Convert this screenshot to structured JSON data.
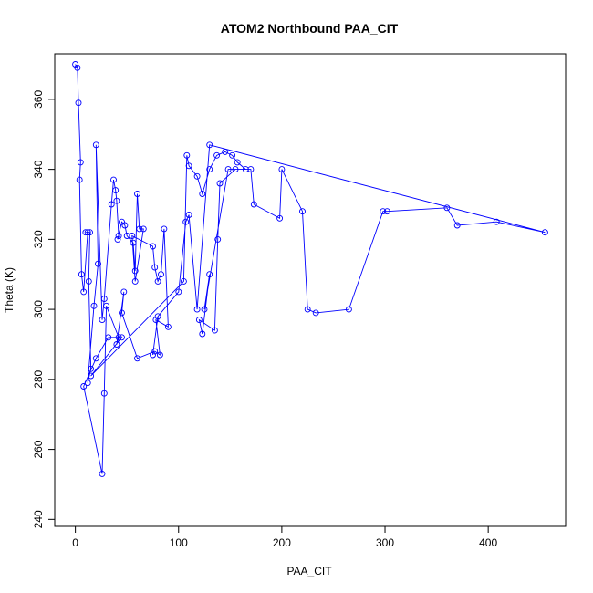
{
  "chart_data": {
    "type": "line",
    "title": "ATOM2 Northbound PAA_CIT",
    "xlabel": "PAA_CIT",
    "ylabel": "Theta (K)",
    "xlim": [
      -20,
      475
    ],
    "ylim": [
      238,
      373
    ],
    "xticks": [
      0,
      100,
      200,
      300,
      400
    ],
    "yticks": [
      240,
      260,
      280,
      300,
      320,
      340,
      360
    ],
    "grid": false,
    "series": [
      {
        "color": "#0000ff",
        "points": [
          [
            0,
            370
          ],
          [
            2,
            369
          ],
          [
            3,
            359
          ],
          [
            5,
            342
          ],
          [
            4,
            337
          ],
          [
            6,
            310
          ],
          [
            8,
            305
          ],
          [
            12,
            322
          ],
          [
            10,
            322
          ],
          [
            14,
            322
          ],
          [
            13,
            308
          ],
          [
            15,
            283
          ],
          [
            12,
            279
          ],
          [
            18,
            301
          ],
          [
            22,
            313
          ],
          [
            20,
            347
          ],
          [
            26,
            297
          ],
          [
            28,
            303
          ],
          [
            35,
            330
          ],
          [
            37,
            337
          ],
          [
            39,
            334
          ],
          [
            40,
            331
          ],
          [
            42,
            321
          ],
          [
            41,
            320
          ],
          [
            45,
            325
          ],
          [
            48,
            324
          ],
          [
            50,
            321
          ],
          [
            56,
            319
          ],
          [
            58,
            311
          ],
          [
            60,
            333
          ],
          [
            62,
            323
          ],
          [
            66,
            323
          ],
          [
            58,
            308
          ],
          [
            55,
            321
          ],
          [
            75,
            318
          ],
          [
            77,
            312
          ],
          [
            80,
            308
          ],
          [
            83,
            310
          ],
          [
            86,
            323
          ],
          [
            90,
            295
          ],
          [
            78,
            297
          ],
          [
            82,
            287
          ],
          [
            77,
            288
          ],
          [
            60,
            286
          ],
          [
            45,
            299
          ],
          [
            47,
            305
          ],
          [
            40,
            290
          ],
          [
            42,
            292
          ],
          [
            30,
            301
          ],
          [
            28,
            276
          ],
          [
            26,
            253
          ],
          [
            8,
            278
          ],
          [
            20,
            286
          ],
          [
            32,
            292
          ],
          [
            45,
            292
          ],
          [
            15,
            281
          ],
          [
            105,
            308
          ],
          [
            108,
            344
          ],
          [
            110,
            341
          ],
          [
            118,
            338
          ],
          [
            123,
            333
          ],
          [
            130,
            340
          ],
          [
            137,
            344
          ],
          [
            145,
            345
          ],
          [
            152,
            344
          ],
          [
            157,
            342
          ],
          [
            165,
            340
          ],
          [
            155,
            340
          ],
          [
            140,
            336
          ],
          [
            138,
            320
          ],
          [
            135,
            294
          ],
          [
            120,
            297
          ],
          [
            123,
            293
          ],
          [
            130,
            310
          ],
          [
            125,
            300
          ],
          [
            148,
            340
          ],
          [
            170,
            340
          ],
          [
            173,
            330
          ],
          [
            198,
            326
          ],
          [
            200,
            340
          ],
          [
            220,
            328
          ],
          [
            225,
            300
          ],
          [
            233,
            299
          ],
          [
            265,
            300
          ],
          [
            298,
            328
          ],
          [
            302,
            328
          ],
          [
            360,
            329
          ],
          [
            370,
            324
          ],
          [
            408,
            325
          ],
          [
            455,
            322
          ],
          [
            130,
            347
          ],
          [
            118,
            300
          ],
          [
            110,
            327
          ],
          [
            107,
            325
          ],
          [
            100,
            305
          ],
          [
            80,
            298
          ],
          [
            75,
            287
          ]
        ]
      }
    ]
  }
}
